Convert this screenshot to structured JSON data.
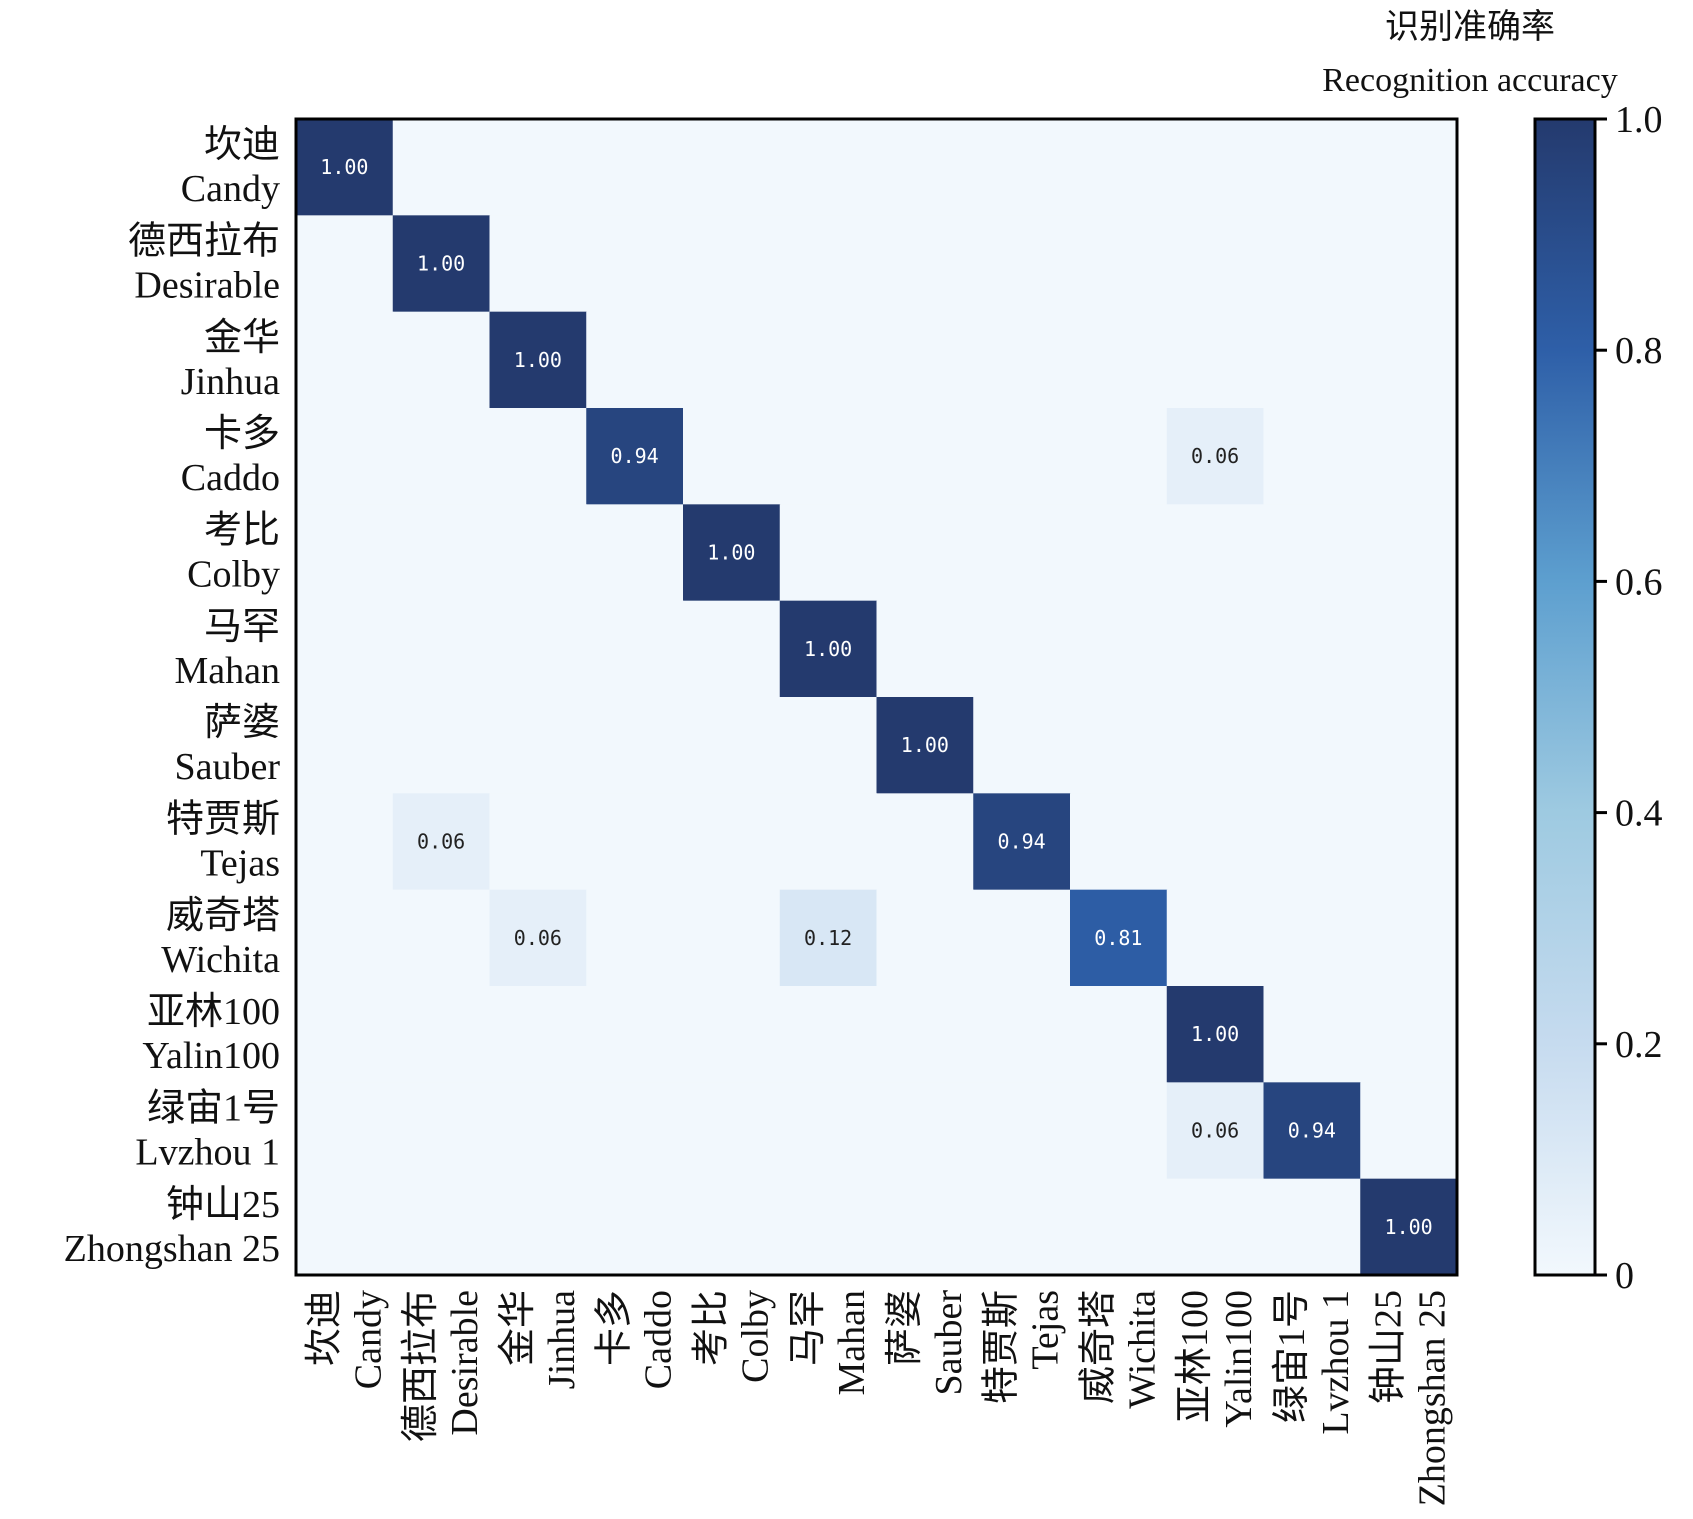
{
  "chart_data": {
    "type": "heatmap",
    "title": "",
    "colorbar_title_cn": "识别准确率",
    "colorbar_title_en": "Recognition accuracy",
    "labels_cn": [
      "坎迪",
      "德西拉布",
      "金华",
      "卡多",
      "考比",
      "马罕",
      "萨婆",
      "特贾斯",
      "威奇塔",
      "亚林100",
      "绿宙1号",
      "钟山25"
    ],
    "labels_en": [
      "Candy",
      "Desirable",
      "Jinhua",
      "Caddo",
      "Colby",
      "Mahan",
      "Sauber",
      "Tejas",
      "Wichita",
      "Yalin100",
      "Lvzhou 1",
      "Zhongshan 25"
    ],
    "matrix": [
      [
        1.0,
        0,
        0,
        0,
        0,
        0,
        0,
        0,
        0,
        0,
        0,
        0
      ],
      [
        0,
        1.0,
        0,
        0,
        0,
        0,
        0,
        0,
        0,
        0,
        0,
        0
      ],
      [
        0,
        0,
        1.0,
        0,
        0,
        0,
        0,
        0,
        0,
        0,
        0,
        0
      ],
      [
        0,
        0,
        0,
        0.94,
        0,
        0,
        0,
        0,
        0,
        0.06,
        0,
        0
      ],
      [
        0,
        0,
        0,
        0,
        1.0,
        0,
        0,
        0,
        0,
        0,
        0,
        0
      ],
      [
        0,
        0,
        0,
        0,
        0,
        1.0,
        0,
        0,
        0,
        0,
        0,
        0
      ],
      [
        0,
        0,
        0,
        0,
        0,
        0,
        1.0,
        0,
        0,
        0,
        0,
        0
      ],
      [
        0,
        0.06,
        0,
        0,
        0,
        0,
        0,
        0.94,
        0,
        0,
        0,
        0
      ],
      [
        0,
        0,
        0.06,
        0,
        0,
        0.12,
        0,
        0,
        0.81,
        0,
        0,
        0
      ],
      [
        0,
        0,
        0,
        0,
        0,
        0,
        0,
        0,
        0,
        1.0,
        0,
        0
      ],
      [
        0,
        0,
        0,
        0,
        0,
        0,
        0,
        0,
        0,
        0.06,
        0.94,
        0
      ],
      [
        0,
        0,
        0,
        0,
        0,
        0,
        0,
        0,
        0,
        0,
        0,
        1.0
      ]
    ],
    "colorbar": {
      "range": [
        0,
        1.0
      ],
      "ticks": [
        0,
        0.2,
        0.4,
        0.6,
        0.8,
        1.0
      ],
      "tick_labels": [
        "0",
        "0.2",
        "0.4",
        "0.6",
        "0.8",
        "1.0"
      ],
      "colormap": "Blues",
      "colors": [
        "#f2f8fd",
        "#c6dbef",
        "#9ecae1",
        "#5d9fcf",
        "#2e5fa8",
        "#243a6e"
      ]
    },
    "grid": false
  }
}
